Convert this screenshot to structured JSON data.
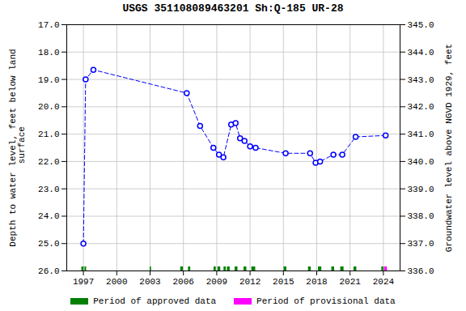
{
  "chart_data": {
    "type": "line",
    "title": "USGS 351108089463201 Sh:Q-185 UR-28",
    "ylabel": "Depth to water level, feet below land\n surface",
    "y2label": "Groundwater level above NGVD 1929, feet",
    "xlim": [
      1995.5,
      2025.5
    ],
    "xticks": [
      1997,
      2000,
      2003,
      2006,
      2009,
      2012,
      2015,
      2018,
      2021,
      2024
    ],
    "ylim": [
      26.0,
      17.0
    ],
    "yticks": [
      {
        "value": 17,
        "label": "17.0"
      },
      {
        "value": 18,
        "label": "18.0"
      },
      {
        "value": 19,
        "label": "19.0"
      },
      {
        "value": 20,
        "label": "20.0"
      },
      {
        "value": 21,
        "label": "21.0"
      },
      {
        "value": 22,
        "label": "22.0"
      },
      {
        "value": 23,
        "label": "23.0"
      },
      {
        "value": 24,
        "label": "24.0"
      },
      {
        "value": 25,
        "label": "25.0"
      },
      {
        "value": 26,
        "label": "26.0"
      }
    ],
    "y2lim": [
      336.0,
      345.0
    ],
    "y2ticks": [
      {
        "value": 336,
        "label": "336.0"
      },
      {
        "value": 337,
        "label": "337.0"
      },
      {
        "value": 338,
        "label": "338.0"
      },
      {
        "value": 339,
        "label": "339.0"
      },
      {
        "value": 340,
        "label": "340.0"
      },
      {
        "value": 341,
        "label": "341.0"
      },
      {
        "value": 342,
        "label": "342.0"
      },
      {
        "value": 343,
        "label": "343.0"
      },
      {
        "value": 344,
        "label": "344.0"
      },
      {
        "value": 345,
        "label": "345.0"
      }
    ],
    "grid": true,
    "x": [
      1997.0,
      1997.2,
      1997.9,
      2006.3,
      2007.5,
      2008.7,
      2009.2,
      2009.6,
      2010.3,
      2010.7,
      2011.1,
      2011.5,
      2012.0,
      2012.5,
      2015.2,
      2017.4,
      2017.9,
      2018.3,
      2019.5,
      2020.3,
      2021.5,
      2024.2
    ],
    "values": [
      25.0,
      19.0,
      18.65,
      19.5,
      20.7,
      21.5,
      21.75,
      21.85,
      20.65,
      20.6,
      21.15,
      21.25,
      21.45,
      21.5,
      21.7,
      21.7,
      22.05,
      22.0,
      21.75,
      21.75,
      21.1,
      21.05
    ],
    "color": "#0000ff",
    "marker": "circle",
    "line_style": "dashed",
    "legend": "bottom",
    "series": [
      {
        "name": "Period of approved data",
        "type": "span",
        "color": "#008000",
        "values": [
          [
            1996.85,
            1997.05
          ],
          [
            1997.13,
            1997.28
          ],
          [
            2003.0,
            2003.12
          ],
          [
            2005.75,
            2006.0
          ],
          [
            2006.45,
            2006.65
          ],
          [
            2008.75,
            2008.95
          ],
          [
            2009.1,
            2009.35
          ],
          [
            2009.65,
            2009.85
          ],
          [
            2009.95,
            2010.2
          ],
          [
            2010.65,
            2010.9
          ],
          [
            2011.45,
            2011.7
          ],
          [
            2012.15,
            2012.5
          ],
          [
            2015.05,
            2015.3
          ],
          [
            2017.25,
            2017.5
          ],
          [
            2018.15,
            2018.45
          ],
          [
            2019.35,
            2019.6
          ],
          [
            2020.15,
            2020.45
          ],
          [
            2021.35,
            2021.6
          ],
          [
            2023.85,
            2024.05
          ]
        ]
      },
      {
        "name": "Period of provisional data",
        "type": "span",
        "color": "#ff00ff",
        "values": [
          [
            2024.1,
            2024.35
          ]
        ]
      }
    ]
  }
}
